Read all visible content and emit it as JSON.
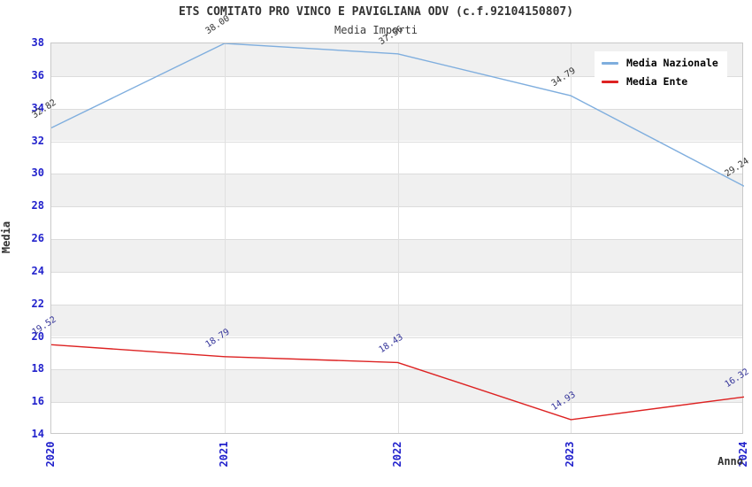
{
  "figure": {
    "title": "ETS COMITATO PRO VINCO E PAVIGLIANA ODV (c.f.92104150807)",
    "subtitle": "Media Importi"
  },
  "chart_data": {
    "type": "line",
    "title": "ETS COMITATO PRO VINCO E PAVIGLIANA ODV (c.f.92104150807)",
    "subtitle": "Media Importi",
    "xlabel": "Anno",
    "ylabel": "Media",
    "categories": [
      "2020",
      "2021",
      "2022",
      "2023",
      "2024"
    ],
    "series": [
      {
        "name": "Media Nazionale",
        "color": "#7FAEDE",
        "label_color": "#333333",
        "values": [
          32.82,
          38.0,
          37.36,
          34.79,
          29.24
        ]
      },
      {
        "name": "Media Ente",
        "color": "#DD2222",
        "label_color": "#333399",
        "values": [
          19.52,
          18.79,
          18.43,
          14.93,
          16.32
        ]
      }
    ],
    "ylim": [
      14,
      38
    ],
    "ytick_step": 2,
    "yticks": [
      14,
      16,
      18,
      20,
      22,
      24,
      26,
      28,
      30,
      32,
      34,
      36,
      38
    ],
    "xtick_rotation": 90,
    "grid": true,
    "band_fill": "#F0F0F0",
    "tick_label_color": "#2222CC",
    "grid_color": "#DCDCDC",
    "border_color": "#C9C9C9",
    "legend_position": "top-right",
    "value_label_decimals": 2
  }
}
